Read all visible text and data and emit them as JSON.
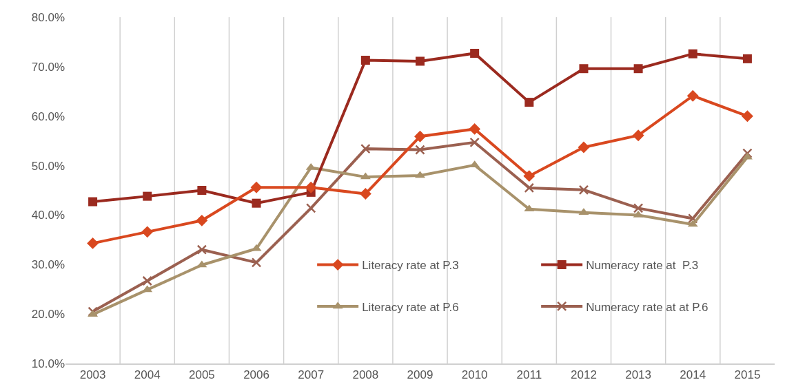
{
  "chart_data": {
    "type": "line",
    "categories": [
      "2003",
      "2004",
      "2005",
      "2006",
      "2007",
      "2008",
      "2009",
      "2010",
      "2011",
      "2012",
      "2013",
      "2014",
      "2015"
    ],
    "series": [
      {
        "name": "Literacy rate at P.3",
        "color": "#d9481f",
        "marker": "diamond",
        "values": [
          34.3,
          36.6,
          38.9,
          45.6,
          45.6,
          44.3,
          55.9,
          57.4,
          47.9,
          53.7,
          56.1,
          64.1,
          60.0
        ]
      },
      {
        "name": "Numeracy rate at  P.3",
        "color": "#9b2a1f",
        "marker": "square",
        "values": [
          42.7,
          43.8,
          45.0,
          42.4,
          44.6,
          71.3,
          71.1,
          72.7,
          62.8,
          69.6,
          69.6,
          72.6,
          71.6
        ]
      },
      {
        "name": "Literacy rate at P.6",
        "color": "#a8926b",
        "marker": "triangle",
        "values": [
          19.9,
          24.9,
          29.9,
          33.2,
          49.6,
          47.7,
          48.0,
          50.1,
          41.2,
          40.5,
          40.0,
          38.1,
          51.7
        ]
      },
      {
        "name": "Numeracy rate at at P.6",
        "color": "#9b6050",
        "marker": "cross",
        "values": [
          20.5,
          26.7,
          33.0,
          30.4,
          41.4,
          53.4,
          53.2,
          54.7,
          45.5,
          45.1,
          41.4,
          39.3,
          52.5
        ]
      }
    ],
    "ylim": [
      10,
      80
    ],
    "yticks": [
      {
        "value": 10,
        "label": "10.0%"
      },
      {
        "value": 20,
        "label": "20.0%"
      },
      {
        "value": 30,
        "label": "30.0%"
      },
      {
        "value": 40,
        "label": "40.0%"
      },
      {
        "value": 50,
        "label": "50.0%"
      },
      {
        "value": 60,
        "label": "60.0%"
      },
      {
        "value": 70,
        "label": "70.0%"
      },
      {
        "value": 80,
        "label": "80.0%"
      }
    ],
    "grid": "x",
    "legend": "bottom right",
    "line_style": "solid"
  }
}
